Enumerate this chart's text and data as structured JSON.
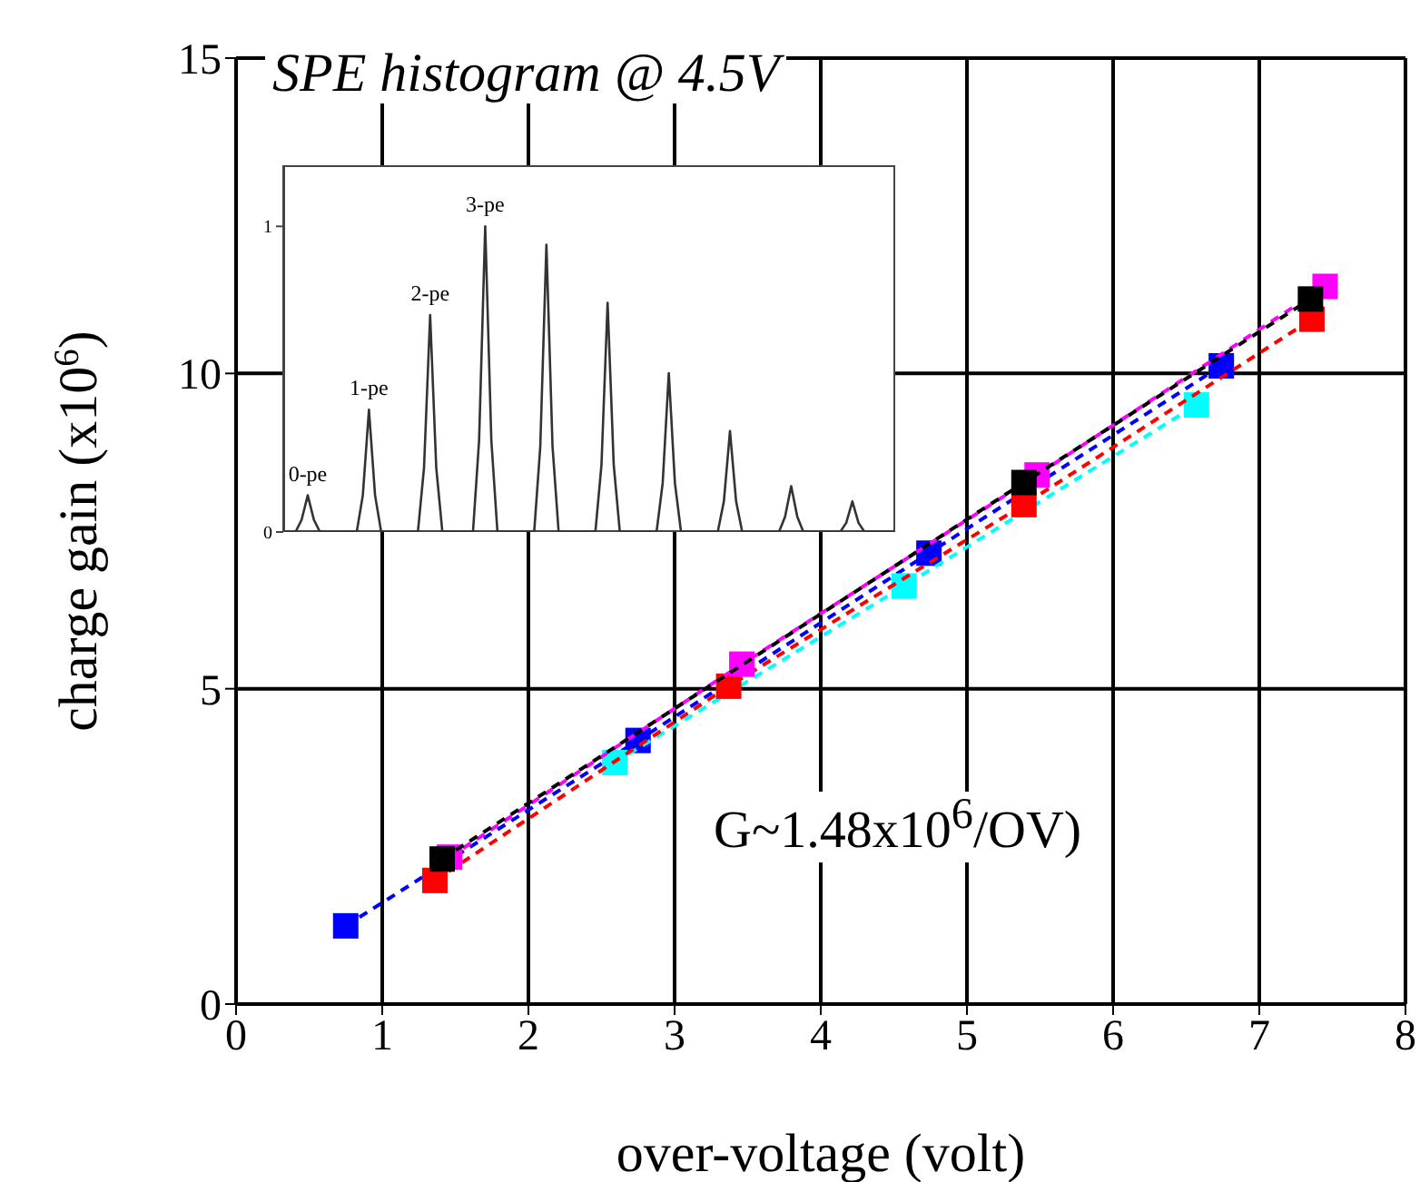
{
  "chart_data": [
    {
      "type": "line",
      "xlabel": "over-voltage (volt)",
      "ylabel": "charge gain (x10$^{6}$)",
      "annotations": [
        "G~1.48x10$^{6}$/OV)"
      ],
      "xlim": [
        0,
        8
      ],
      "xticks": [
        0,
        1,
        2,
        3,
        4,
        5,
        6,
        7,
        8
      ],
      "ylim": [
        0,
        15
      ],
      "yticks": [
        0,
        5,
        10,
        15
      ],
      "grid": true,
      "marker": "square",
      "line_style": "dashed",
      "series": [
        {
          "color": "#0000ff",
          "x": [
            0.75,
            2.75,
            4.74,
            6.74
          ],
          "values": [
            1.24,
            4.18,
            7.15,
            10.12
          ]
        },
        {
          "color": "#00ffff",
          "x": [
            2.59,
            4.57,
            6.57
          ],
          "values": [
            3.83,
            6.63,
            9.5
          ]
        },
        {
          "color": "#ff0000",
          "x": [
            1.36,
            3.37,
            5.39,
            7.36
          ],
          "values": [
            1.96,
            5.04,
            7.92,
            10.86
          ]
        },
        {
          "color": "#ff00ff",
          "x": [
            1.46,
            3.46,
            5.48,
            7.45
          ],
          "values": [
            2.33,
            5.39,
            8.39,
            11.38
          ]
        },
        {
          "color": "#000000",
          "x": [
            1.41,
            5.39,
            7.35
          ],
          "values": [
            2.3,
            8.27,
            11.18
          ]
        }
      ]
    },
    {
      "type": "line",
      "title": "SPE histogram @ 4.5V",
      "categories": [
        null,
        null,
        null,
        null,
        null,
        null,
        null,
        null,
        null,
        null,
        null,
        null,
        null,
        null,
        null,
        null,
        null,
        null,
        null,
        null,
        null,
        null,
        null,
        null,
        null,
        null,
        null,
        null,
        null,
        null,
        null,
        null,
        null,
        null,
        null,
        null,
        null,
        null,
        null,
        null,
        null,
        null,
        null,
        null,
        null,
        null,
        null,
        null,
        null,
        null,
        null,
        null,
        null,
        null,
        null,
        null,
        null,
        null,
        null,
        null,
        null,
        null,
        null,
        null,
        null,
        null,
        null,
        null,
        null,
        null,
        null,
        null,
        null,
        null,
        null,
        null,
        null,
        null,
        null,
        null,
        null,
        null,
        null,
        null,
        null,
        null,
        null,
        null,
        null,
        null,
        null,
        null,
        null,
        null,
        null,
        null,
        null,
        null,
        null,
        null,
        null
      ],
      "values": [
        0,
        0,
        0,
        0.04,
        0.12,
        0.04,
        0,
        0,
        0,
        0,
        0,
        0,
        0,
        0.12,
        0.4,
        0.12,
        0,
        0,
        0,
        0,
        0,
        0,
        0,
        0.21,
        0.71,
        0.21,
        0,
        0,
        0,
        0,
        0,
        0,
        0.3,
        1,
        0.3,
        0,
        0,
        0,
        0,
        0,
        0,
        0,
        0.28,
        0.94,
        0.28,
        0,
        0,
        0,
        0,
        0,
        0,
        0,
        0.22,
        0.75,
        0.22,
        0,
        0,
        0,
        0,
        0,
        0,
        0,
        0.16,
        0.52,
        0.16,
        0,
        0,
        0,
        0,
        0,
        0,
        0,
        0.1,
        0.33,
        0.1,
        0,
        0,
        0,
        0,
        0,
        0,
        0,
        0.05,
        0.15,
        0.05,
        0,
        0,
        0,
        0,
        0,
        0,
        0,
        0.03,
        0.1,
        0.03,
        0,
        0,
        0,
        0,
        0,
        0
      ],
      "color": "#333333",
      "ylim": [
        0,
        1.2
      ],
      "yticks": [
        0,
        1
      ],
      "tick_labels": "y",
      "marker": "none",
      "annotations": [
        {
          "text": "0-pe",
          "y": 0.12
        },
        {
          "text": "1-pe",
          "y": 0.4
        },
        {
          "text": "2-pe",
          "y": 0.71
        },
        {
          "text": "3-pe",
          "y": 1
        }
      ]
    }
  ]
}
